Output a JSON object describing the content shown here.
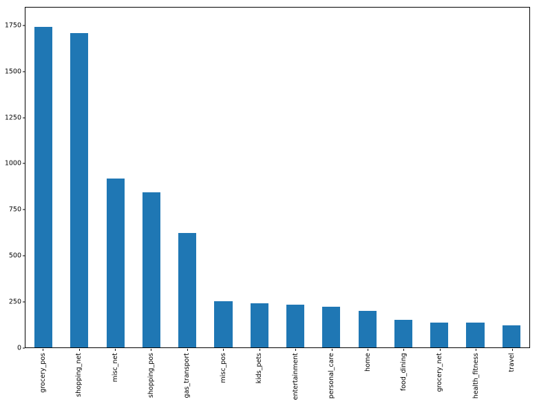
{
  "chart_data": {
    "type": "bar",
    "title": "",
    "xlabel": "",
    "ylabel": "",
    "categories": [
      "grocery_pos",
      "shopping_net",
      "misc_net",
      "shopping_pos",
      "gas_transport",
      "misc_pos",
      "kids_pets",
      "entertainment",
      "personal_care",
      "home",
      "food_dining",
      "grocery_net",
      "health_fitness",
      "travel"
    ],
    "values": [
      1745,
      1713,
      918,
      845,
      622,
      252,
      240,
      233,
      221,
      199,
      151,
      136,
      134,
      119
    ],
    "yticks": [
      0,
      250,
      500,
      750,
      1000,
      1250,
      1500,
      1750
    ],
    "ylim": [
      0,
      1850
    ],
    "bar_color": "#1f77b4",
    "grid": "off",
    "legend": "none"
  }
}
